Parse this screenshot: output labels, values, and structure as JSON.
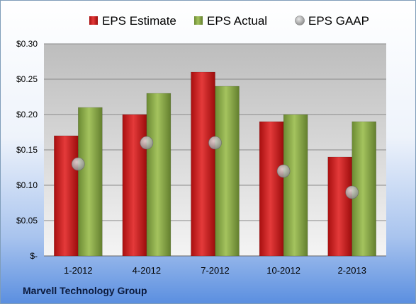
{
  "company": "Marvell Technology Group",
  "chart_data": {
    "type": "bar",
    "categories": [
      "1-2012",
      "4-2012",
      "7-2012",
      "10-2012",
      "2-2013"
    ],
    "series": [
      {
        "name": "EPS Estimate",
        "values": [
          0.17,
          0.2,
          0.26,
          0.19,
          0.14
        ],
        "color": "#d42020",
        "marker": "bar"
      },
      {
        "name": "EPS Actual",
        "values": [
          0.21,
          0.23,
          0.24,
          0.2,
          0.19
        ],
        "color": "#8cad4a",
        "marker": "bar"
      },
      {
        "name": "EPS GAAP",
        "values": [
          0.13,
          0.16,
          0.16,
          0.12,
          0.09
        ],
        "color": "#9aa0aa",
        "marker": "circle"
      }
    ],
    "ylim": [
      0,
      0.3
    ],
    "yticks": [
      0,
      0.05,
      0.1,
      0.15,
      0.2,
      0.25,
      0.3
    ],
    "ytick_labels": [
      "$-",
      "$0.05",
      "$0.10",
      "$0.15",
      "$0.20",
      "$0.25",
      "$0.30"
    ],
    "grid": true,
    "legend_position": "top"
  }
}
